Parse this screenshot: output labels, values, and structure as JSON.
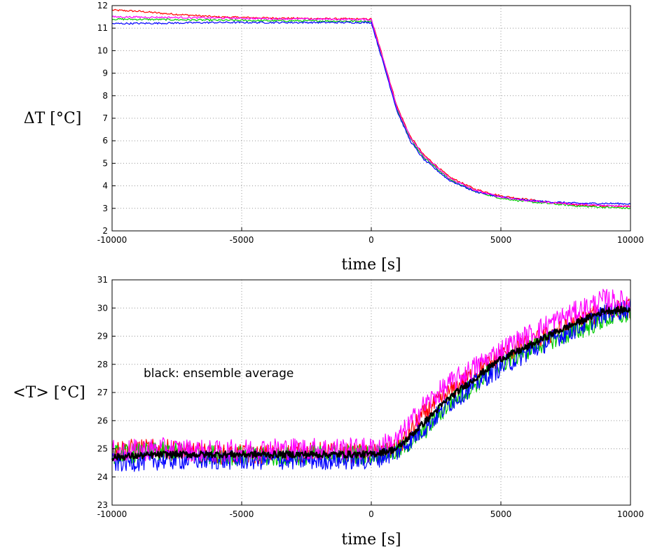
{
  "chart_data": [
    {
      "type": "line",
      "xlabel": "time [s]",
      "ylabel": "ΔT [°C]",
      "xlim": [
        -10000,
        10000
      ],
      "ylim": [
        2,
        12
      ],
      "xticks": [
        -10000,
        -5000,
        0,
        5000,
        10000
      ],
      "yticks": [
        2,
        3,
        4,
        5,
        6,
        7,
        8,
        9,
        10,
        11,
        12
      ],
      "grid": "dotted",
      "series": [
        {
          "color": "#ff0000",
          "x": [
            -10000,
            -9000,
            -8000,
            -6000,
            -4000,
            -2000,
            0,
            500,
            1000,
            1500,
            2000,
            3000,
            4000,
            5000,
            6000,
            7000,
            8000,
            9000,
            10000
          ],
          "values": [
            11.8,
            11.75,
            11.65,
            11.5,
            11.45,
            11.42,
            11.4,
            9.5,
            7.5,
            6.2,
            5.4,
            4.4,
            3.85,
            3.55,
            3.4,
            3.25,
            3.15,
            3.1,
            3.1
          ]
        },
        {
          "color": "#00cc00",
          "x": [
            -10000,
            -8000,
            -6000,
            -4000,
            -2000,
            0,
            500,
            1000,
            1500,
            2000,
            3000,
            4000,
            5000,
            6000,
            7000,
            8000,
            9000,
            10000
          ],
          "values": [
            11.4,
            11.38,
            11.35,
            11.33,
            11.32,
            11.3,
            9.4,
            7.4,
            6.1,
            5.3,
            4.3,
            3.75,
            3.45,
            3.3,
            3.2,
            3.1,
            3.05,
            3.0
          ]
        },
        {
          "color": "#0000ff",
          "x": [
            -10000,
            -8000,
            -6000,
            -4000,
            -2000,
            0,
            500,
            1000,
            1500,
            2000,
            3000,
            4000,
            5000,
            6000,
            7000,
            8000,
            9000,
            10000
          ],
          "values": [
            11.2,
            11.22,
            11.25,
            11.25,
            11.25,
            11.25,
            9.3,
            7.3,
            6.0,
            5.2,
            4.25,
            3.75,
            3.5,
            3.35,
            3.28,
            3.22,
            3.22,
            3.2
          ]
        },
        {
          "color": "#ff00ff",
          "x": [
            -10000,
            -8000,
            -6000,
            -4000,
            -2000,
            0,
            500,
            1000,
            1500,
            2000,
            3000,
            4000,
            5000,
            6000,
            7000,
            8000,
            9000,
            10000
          ],
          "values": [
            11.5,
            11.48,
            11.45,
            11.42,
            11.4,
            11.38,
            9.45,
            7.45,
            6.15,
            5.35,
            4.35,
            3.8,
            3.5,
            3.35,
            3.25,
            3.18,
            3.12,
            3.1
          ]
        }
      ]
    },
    {
      "type": "line",
      "xlabel": "time [s]",
      "ylabel": "<T> [°C]",
      "xlim": [
        -10000,
        10000
      ],
      "ylim": [
        23,
        31
      ],
      "xticks": [
        -10000,
        -5000,
        0,
        5000,
        10000
      ],
      "yticks": [
        23,
        24,
        25,
        26,
        27,
        28,
        29,
        30,
        31
      ],
      "grid": "dotted",
      "annotation": "black: ensemble average",
      "series": [
        {
          "color": "#ff0000",
          "x": [
            -10000,
            -8000,
            -6000,
            -4000,
            -2000,
            0,
            1000,
            2000,
            3000,
            4000,
            5000,
            6000,
            7000,
            8000,
            9000,
            10000
          ],
          "values": [
            25.0,
            25.0,
            24.8,
            24.8,
            24.9,
            24.8,
            25.0,
            26.2,
            27.0,
            27.7,
            28.3,
            28.7,
            29.1,
            29.5,
            29.9,
            30.0
          ],
          "noise": 0.35
        },
        {
          "color": "#00cc00",
          "x": [
            -10000,
            -8000,
            -6000,
            -4000,
            -2000,
            0,
            1000,
            2000,
            3000,
            4000,
            5000,
            6000,
            7000,
            8000,
            9000,
            10000
          ],
          "values": [
            24.8,
            24.9,
            24.8,
            24.7,
            24.8,
            24.8,
            24.9,
            25.6,
            26.6,
            27.3,
            28.0,
            28.5,
            28.9,
            29.2,
            29.6,
            29.8
          ],
          "noise": 0.35
        },
        {
          "color": "#0000ff",
          "x": [
            -10000,
            -8000,
            -6000,
            -4000,
            -2000,
            0,
            1000,
            2000,
            3000,
            4000,
            5000,
            6000,
            7000,
            8000,
            9000,
            10000
          ],
          "values": [
            24.5,
            24.6,
            24.6,
            24.6,
            24.6,
            24.6,
            24.9,
            25.7,
            26.6,
            27.3,
            27.9,
            28.4,
            28.9,
            29.3,
            29.8,
            30.0
          ],
          "noise": 0.35
        },
        {
          "color": "#ff00ff",
          "x": [
            -10000,
            -8000,
            -6000,
            -4000,
            -2000,
            0,
            1000,
            2000,
            3000,
            4000,
            5000,
            6000,
            7000,
            8000,
            9000,
            10000
          ],
          "values": [
            24.9,
            25.0,
            24.9,
            25.0,
            25.0,
            25.0,
            25.3,
            26.5,
            27.3,
            27.9,
            28.5,
            29.0,
            29.5,
            29.9,
            30.3,
            30.2
          ],
          "noise": 0.4
        },
        {
          "color": "#000000",
          "x": [
            -10000,
            -8000,
            -6000,
            -4000,
            -2000,
            0,
            1000,
            2000,
            3000,
            4000,
            5000,
            6000,
            7000,
            8000,
            9000,
            10000
          ],
          "values": [
            24.7,
            24.8,
            24.8,
            24.8,
            24.8,
            24.8,
            25.0,
            25.9,
            26.8,
            27.5,
            28.2,
            28.6,
            29.1,
            29.5,
            29.9,
            29.95
          ],
          "noise": 0.12
        }
      ]
    }
  ]
}
